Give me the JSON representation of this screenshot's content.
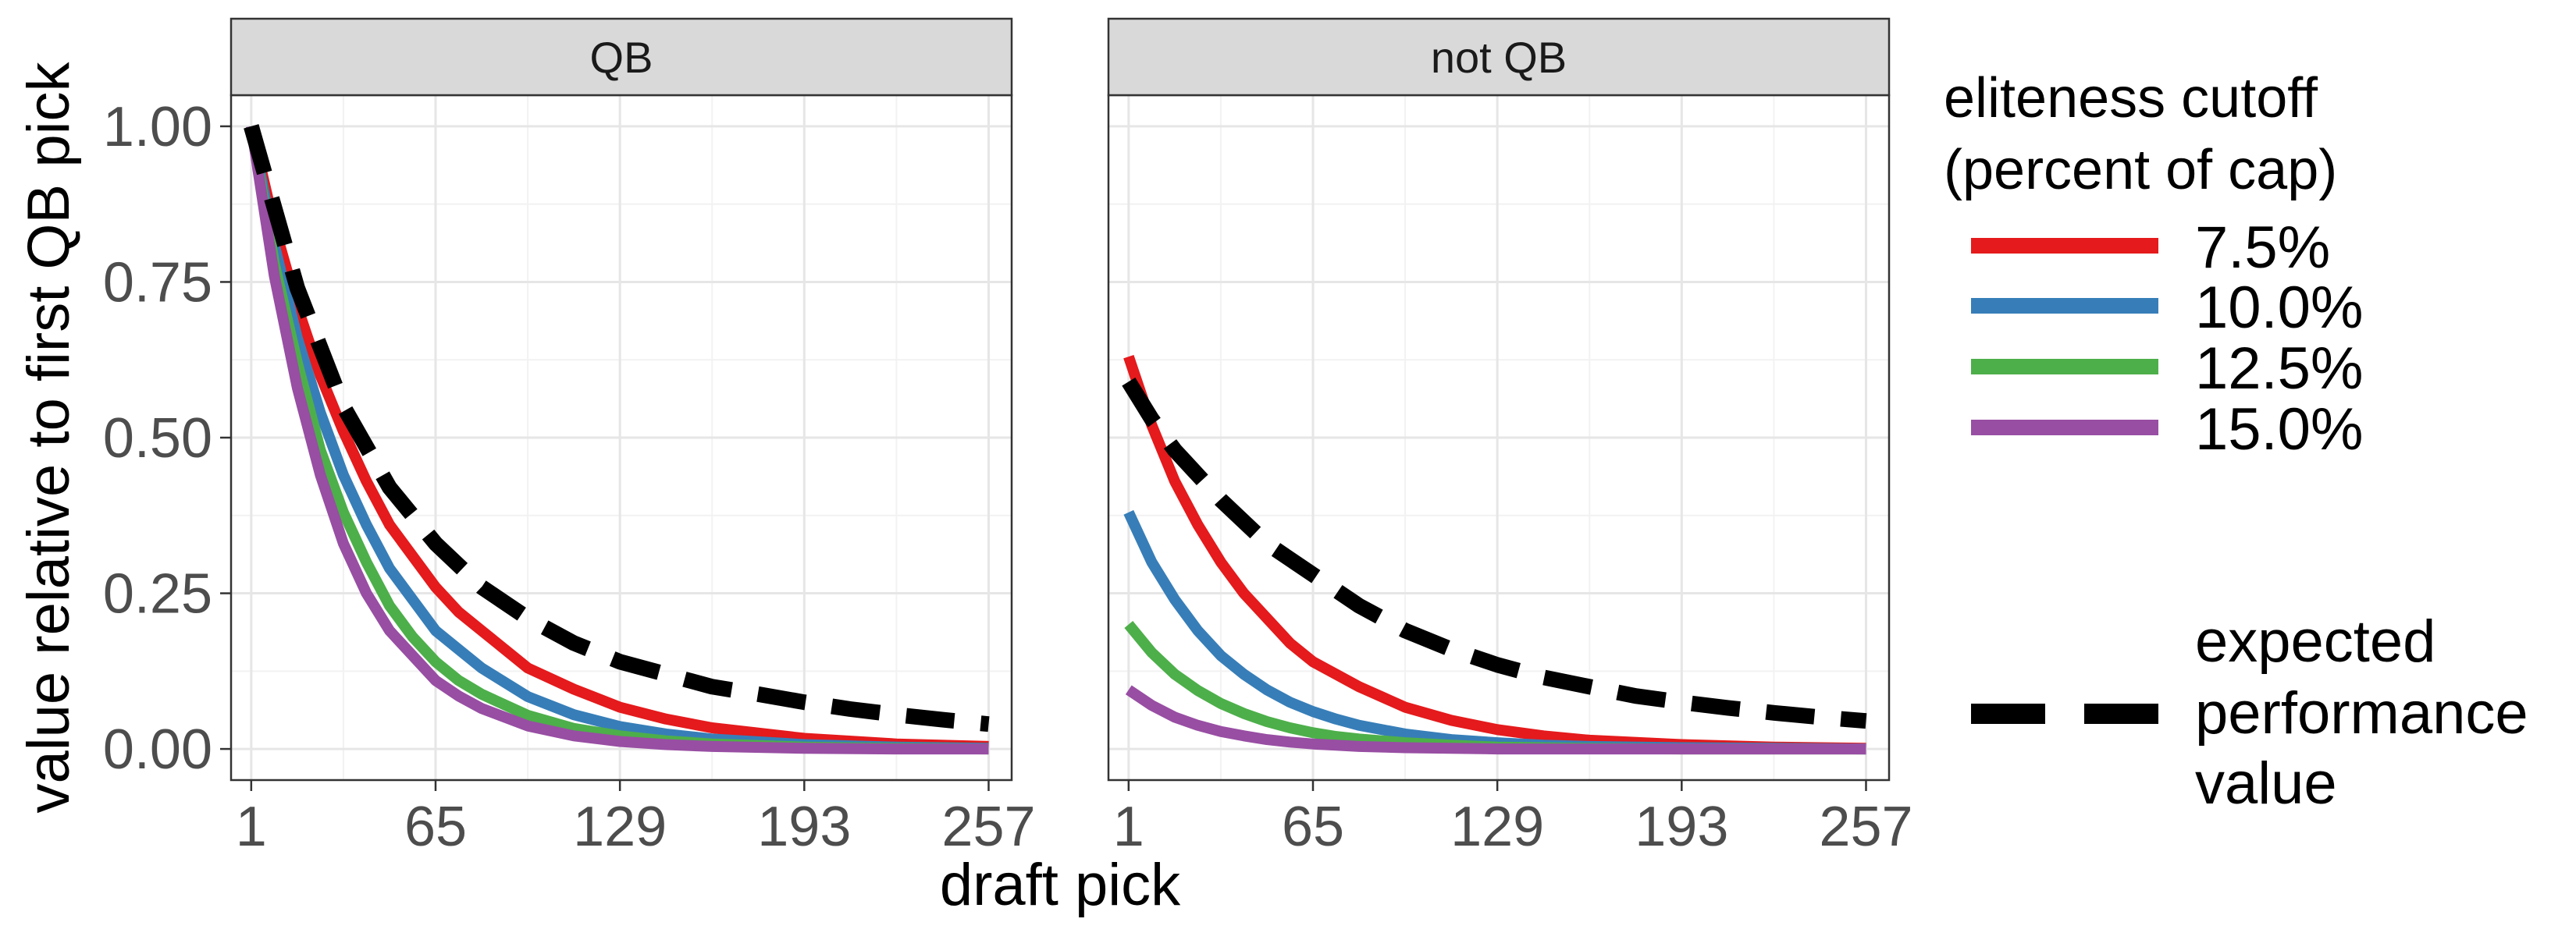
{
  "chart_data": {
    "type": "line",
    "ylabel": "value relative to first QB pick",
    "xlabel": "draft pick",
    "x_ticks": [
      1,
      65,
      129,
      193,
      257
    ],
    "y_ticks": [
      0.0,
      0.25,
      0.5,
      0.75,
      1.0
    ],
    "y_tick_labels": [
      "0.00",
      "0.25",
      "0.50",
      "0.75",
      "1.00"
    ],
    "xlim": [
      -6,
      265
    ],
    "ylim": [
      -0.05,
      1.05
    ],
    "grid": true,
    "legend": {
      "position": "right",
      "title_lines": [
        "eliteness cutoff",
        "(percent of cap)"
      ],
      "dashed_label_lines": [
        "expected",
        "performance",
        "value"
      ]
    },
    "colors": {
      "7.5%": "#E41A1C",
      "10.0%": "#377EB8",
      "12.5%": "#4DAF4A",
      "15.0%": "#984EA3",
      "expected performance value": "#000000"
    },
    "panels": [
      {
        "name": "QB",
        "series": [
          {
            "name": "7.5%",
            "style": "solid",
            "color": "#E41A1C",
            "x": [
              1,
              9,
              17,
              25,
              33,
              41,
              49,
              57,
              65,
              73,
              81,
              97,
              113,
              129,
              145,
              161,
              193,
              225,
              257
            ],
            "y": [
              1.0,
              0.84,
              0.71,
              0.6,
              0.51,
              0.43,
              0.36,
              0.31,
              0.26,
              0.22,
              0.19,
              0.13,
              0.096,
              0.067,
              0.048,
              0.034,
              0.017,
              0.008,
              0.004
            ]
          },
          {
            "name": "10.0%",
            "style": "solid",
            "color": "#377EB8",
            "x": [
              1,
              9,
              17,
              25,
              33,
              41,
              49,
              57,
              65,
              73,
              81,
              97,
              113,
              129,
              145,
              161,
              193,
              225,
              257
            ],
            "y": [
              1.0,
              0.81,
              0.66,
              0.54,
              0.44,
              0.36,
              0.29,
              0.24,
              0.19,
              0.16,
              0.13,
              0.084,
              0.055,
              0.036,
              0.024,
              0.016,
              0.007,
              0.003,
              0.001
            ]
          },
          {
            "name": "12.5%",
            "style": "solid",
            "color": "#4DAF4A",
            "x": [
              1,
              9,
              17,
              25,
              33,
              41,
              49,
              57,
              65,
              73,
              81,
              97,
              113,
              129,
              145,
              161,
              193,
              225,
              257
            ],
            "y": [
              1.0,
              0.78,
              0.62,
              0.48,
              0.38,
              0.3,
              0.23,
              0.18,
              0.14,
              0.11,
              0.088,
              0.054,
              0.033,
              0.021,
              0.013,
              0.008,
              0.003,
              0.001,
              0.0
            ]
          },
          {
            "name": "15.0%",
            "style": "solid",
            "color": "#984EA3",
            "x": [
              1,
              9,
              17,
              25,
              33,
              41,
              49,
              57,
              65,
              73,
              81,
              97,
              113,
              129,
              145,
              161,
              193,
              225,
              257
            ],
            "y": [
              1.0,
              0.76,
              0.58,
              0.44,
              0.33,
              0.25,
              0.19,
              0.15,
              0.11,
              0.085,
              0.065,
              0.037,
              0.021,
              0.012,
              0.007,
              0.004,
              0.001,
              0.0,
              0.0
            ]
          },
          {
            "name": "expected performance value",
            "style": "dashed",
            "color": "#000000",
            "x": [
              1,
              17,
              33,
              49,
              65,
              81,
              97,
              113,
              129,
              145,
              161,
              177,
              193,
              209,
              225,
              241,
              257
            ],
            "y": [
              1.0,
              0.74,
              0.55,
              0.42,
              0.33,
              0.26,
              0.21,
              0.17,
              0.14,
              0.12,
              0.1,
              0.088,
              0.075,
              0.064,
              0.055,
              0.047,
              0.04
            ]
          }
        ]
      },
      {
        "name": "not QB",
        "series": [
          {
            "name": "7.5%",
            "style": "solid",
            "color": "#E41A1C",
            "x": [
              1,
              9,
              17,
              25,
              33,
              41,
              49,
              57,
              65,
              73,
              81,
              97,
              113,
              129,
              145,
              161,
              193,
              225,
              257
            ],
            "y": [
              0.63,
              0.52,
              0.43,
              0.36,
              0.3,
              0.25,
              0.21,
              0.17,
              0.14,
              0.12,
              0.1,
              0.067,
              0.046,
              0.031,
              0.021,
              0.014,
              0.007,
              0.003,
              0.001
            ]
          },
          {
            "name": "10.0%",
            "style": "solid",
            "color": "#377EB8",
            "x": [
              1,
              9,
              17,
              25,
              33,
              41,
              49,
              57,
              65,
              73,
              81,
              97,
              113,
              129,
              145,
              161,
              193,
              225,
              257
            ],
            "y": [
              0.38,
              0.3,
              0.24,
              0.19,
              0.15,
              0.12,
              0.095,
              0.075,
              0.06,
              0.048,
              0.038,
              0.024,
              0.015,
              0.01,
              0.006,
              0.004,
              0.002,
              0.001,
              0.0
            ]
          },
          {
            "name": "12.5%",
            "style": "solid",
            "color": "#4DAF4A",
            "x": [
              1,
              9,
              17,
              25,
              33,
              41,
              49,
              57,
              65,
              73,
              81,
              97,
              113,
              129,
              145,
              161,
              193,
              225,
              257
            ],
            "y": [
              0.2,
              0.155,
              0.12,
              0.094,
              0.073,
              0.057,
              0.044,
              0.034,
              0.026,
              0.02,
              0.016,
              0.01,
              0.006,
              0.003,
              0.002,
              0.001,
              0.0,
              0.0,
              0.0
            ]
          },
          {
            "name": "15.0%",
            "style": "solid",
            "color": "#984EA3",
            "x": [
              1,
              9,
              17,
              25,
              33,
              41,
              49,
              57,
              65,
              73,
              81,
              97,
              113,
              129,
              145,
              161,
              193,
              225,
              257
            ],
            "y": [
              0.095,
              0.07,
              0.051,
              0.038,
              0.028,
              0.021,
              0.015,
              0.011,
              0.008,
              0.006,
              0.004,
              0.002,
              0.001,
              0.0,
              0.0,
              0.0,
              0.0,
              0.0,
              0.0
            ]
          },
          {
            "name": "expected performance value",
            "style": "dashed",
            "color": "#000000",
            "x": [
              1,
              9,
              17,
              33,
              49,
              65,
              81,
              97,
              113,
              129,
              145,
              161,
              177,
              193,
              209,
              225,
              241,
              257
            ],
            "y": [
              0.59,
              0.53,
              0.48,
              0.4,
              0.33,
              0.28,
              0.23,
              0.19,
              0.16,
              0.135,
              0.115,
              0.1,
              0.085,
              0.075,
              0.066,
              0.058,
              0.051,
              0.045
            ]
          }
        ]
      }
    ]
  }
}
